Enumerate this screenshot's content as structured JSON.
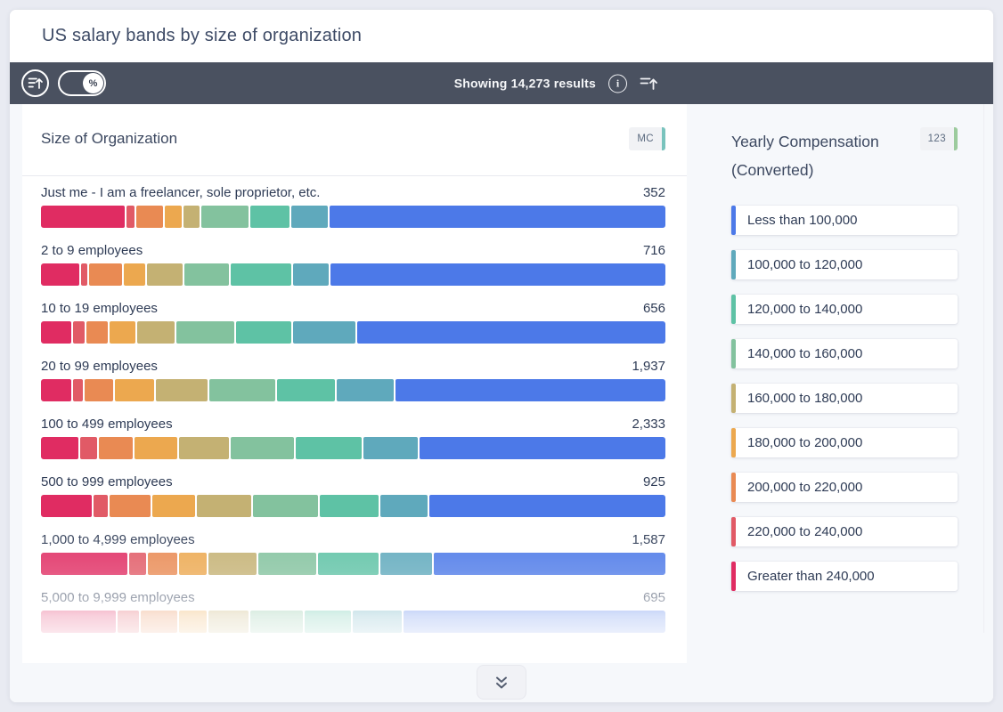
{
  "header": {
    "title": "US salary bands by size of organization"
  },
  "toolbar": {
    "results_text": "Showing 14,273 results",
    "toggle_label": "%",
    "toggle_state": "on"
  },
  "chart_panel": {
    "title": "Size of Organization",
    "badge": "MC",
    "badge_strip_color": "#79c3bd"
  },
  "legend_panel": {
    "title": "Yearly Compensation (Converted)",
    "badge": "123",
    "badge_strip_color": "#9ccb9d",
    "items": [
      {
        "label": "Less than 100,000",
        "color": "#4c79e8"
      },
      {
        "label": "100,000 to 120,000",
        "color": "#5fa9bc"
      },
      {
        "label": "120,000 to 140,000",
        "color": "#5ec2a5"
      },
      {
        "label": "140,000 to 160,000",
        "color": "#83c29e"
      },
      {
        "label": "160,000 to 180,000",
        "color": "#c4b173"
      },
      {
        "label": "180,000 to 200,000",
        "color": "#eca84f"
      },
      {
        "label": "200,000 to 220,000",
        "color": "#e98a53"
      },
      {
        "label": "220,000 to 240,000",
        "color": "#e15a66"
      },
      {
        "label": "Greater than 240,000",
        "color": "#e02c62"
      }
    ]
  },
  "chart_data": {
    "type": "bar",
    "variant": "horizontal-stacked-100pct",
    "title": "Size of Organization",
    "series_dimension": "Yearly Compensation (Converted)",
    "bands_left_to_right": [
      "Greater than 240,000",
      "220,000 to 240,000",
      "200,000 to 220,000",
      "180,000 to 200,000",
      "160,000 to 180,000",
      "140,000 to 160,000",
      "120,000 to 140,000",
      "100,000 to 120,000",
      "Less than 100,000"
    ],
    "band_colors": [
      "#e02c62",
      "#e15a66",
      "#e98a53",
      "#eca84f",
      "#c4b173",
      "#83c29e",
      "#5ec2a5",
      "#5fa9bc",
      "#4c79e8"
    ],
    "rows": [
      {
        "label": "Just me - I am a freelancer, sole proprietor, etc.",
        "count": "352",
        "segments_pct": [
          13.7,
          1.4,
          4.3,
          2.8,
          2.6,
          7.7,
          6.5,
          6.0,
          55.0
        ]
      },
      {
        "label": "2 to 9 employees",
        "count": "716",
        "segments_pct": [
          6.3,
          1.0,
          5.4,
          3.5,
          5.9,
          7.2,
          10.0,
          5.8,
          54.9
        ]
      },
      {
        "label": "10 to 19 employees",
        "count": "656",
        "segments_pct": [
          5.0,
          1.9,
          3.4,
          4.3,
          6.2,
          9.4,
          9.1,
          10.2,
          50.5
        ]
      },
      {
        "label": "20 to 99 employees",
        "count": "1,937",
        "segments_pct": [
          5.0,
          1.6,
          4.7,
          6.3,
          8.6,
          10.7,
          9.5,
          9.4,
          44.2
        ]
      },
      {
        "label": "100 to 499 employees",
        "count": "2,333",
        "segments_pct": [
          6.1,
          2.8,
          5.5,
          7.1,
          8.1,
          10.4,
          10.8,
          8.9,
          40.3
        ]
      },
      {
        "label": "500 to 999 employees",
        "count": "925",
        "segments_pct": [
          8.3,
          2.3,
          6.7,
          7.1,
          8.9,
          10.7,
          9.6,
          7.7,
          38.7
        ]
      },
      {
        "label": "1,000 to 4,999 employees",
        "count": "1,587",
        "segments_pct": [
          14.1,
          2.9,
          4.8,
          4.5,
          7.9,
          9.4,
          10.0,
          8.4,
          38.0
        ]
      },
      {
        "label": "5,000 to 9,999 employees",
        "count": "695",
        "segments_pct": [
          12.2,
          3.6,
          5.9,
          4.6,
          6.6,
          8.6,
          7.6,
          8.0,
          42.9
        ]
      }
    ]
  }
}
